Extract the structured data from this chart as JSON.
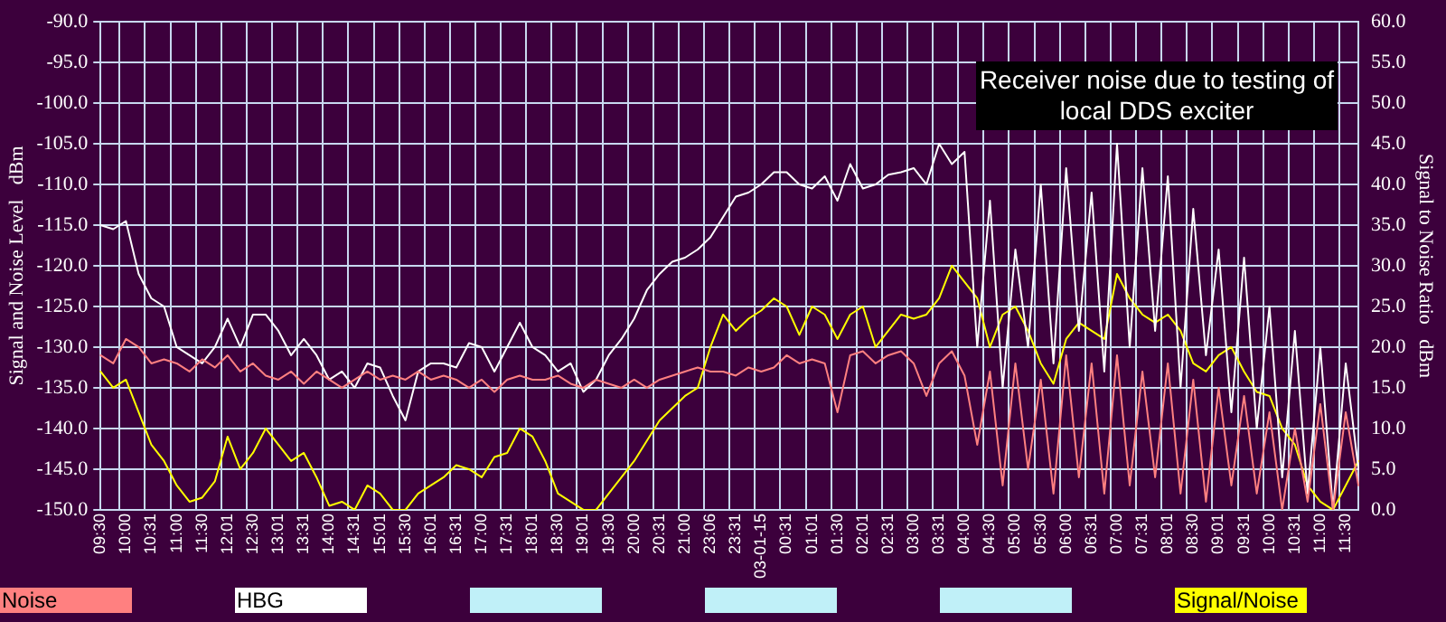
{
  "chart_data": {
    "type": "line",
    "categories": [
      "09:30",
      null,
      "10:00",
      null,
      "10:31",
      null,
      "11:00",
      null,
      "11:30",
      null,
      "12:01",
      null,
      "12:30",
      null,
      "13:01",
      null,
      "13:31",
      null,
      "14:00",
      null,
      "14:31",
      null,
      "15:01",
      null,
      "15:30",
      null,
      "16:01",
      null,
      "16:31",
      null,
      "17:00",
      null,
      "17:31",
      null,
      "18:01",
      null,
      "18:30",
      null,
      "19:01",
      null,
      "19:30",
      null,
      "20:00",
      null,
      "20:31",
      null,
      "21:00",
      null,
      "23:06",
      null,
      "23:31",
      null,
      "03-01-15",
      null,
      "00:31",
      null,
      "01:01",
      null,
      "01:30",
      null,
      "02:01",
      null,
      "02:31",
      null,
      "03:00",
      null,
      "03:31",
      null,
      "04:00",
      null,
      "04:30",
      null,
      "05:00",
      null,
      "05:30",
      null,
      "06:00",
      null,
      "06:31",
      null,
      "07:00",
      null,
      "07:31",
      null,
      "08:01",
      null,
      "08:30",
      null,
      "09:01",
      null,
      "09:31",
      null,
      "10:00",
      null,
      "10:31",
      null,
      "11:00",
      null,
      "11:30",
      null
    ],
    "series": [
      {
        "name": "Noise",
        "color": "#ff8080",
        "values": [
          -131,
          -132,
          -129,
          -130,
          -132,
          -131.5,
          -132,
          -133,
          -131.5,
          -132.5,
          -131,
          -133,
          -132,
          -133.5,
          -134,
          -133,
          -134.5,
          -133,
          -134,
          -135,
          -134,
          -133,
          -134,
          -133.5,
          -134,
          -133,
          -134,
          -133.5,
          -134,
          -135,
          -134,
          -135.5,
          -134,
          -133.5,
          -134,
          -134,
          -133.5,
          -134.5,
          -135,
          -134,
          -134.5,
          -135,
          -134,
          -135,
          -134,
          -133.5,
          -133,
          -132.5,
          -133,
          -133,
          -133.5,
          -132.5,
          -133,
          -132.5,
          -131,
          -132,
          -131.5,
          -132,
          -138,
          -131,
          -130.5,
          -132,
          -131,
          -130.5,
          -132,
          -136,
          -132,
          -130.5,
          -133.5,
          -142,
          -133,
          -147,
          -132,
          -145,
          -134,
          -148,
          -131,
          -146,
          -132,
          -148,
          -131,
          -147,
          -133,
          -146,
          -132,
          -148,
          -134,
          -149,
          -135,
          -147,
          -136,
          -148,
          -138,
          -150,
          -140,
          -149,
          -137,
          -150,
          -138,
          -147
        ]
      },
      {
        "name": "HBG",
        "color": "#ffffff",
        "values": [
          -115,
          -115.5,
          -114.5,
          -121,
          -124,
          -125,
          -130,
          -131,
          -132,
          -130,
          -126.5,
          -130,
          -126,
          -126,
          -128,
          -131,
          -129,
          -131,
          -134,
          -133,
          -135,
          -132,
          -132.5,
          -136,
          -139,
          -133,
          -132,
          -132,
          -132.5,
          -129.5,
          -130,
          -133,
          -130,
          -127,
          -130,
          -131,
          -133,
          -132,
          -135.5,
          -134,
          -131,
          -129,
          -126.5,
          -123,
          -121,
          -119.5,
          -119,
          -118,
          -116.5,
          -114,
          -111.5,
          -111,
          -110,
          -108.5,
          -108.5,
          -110,
          -110.5,
          -109,
          -112,
          -107.5,
          -110.5,
          -110,
          -108.8,
          -108.5,
          -108,
          -110,
          -105,
          -107.5,
          -106,
          -130,
          -112,
          -135,
          -118,
          -130,
          -110,
          -132,
          -108,
          -128,
          -111,
          -133,
          -105,
          -130,
          -108,
          -128,
          -109,
          -135,
          -113,
          -131,
          -118,
          -138,
          -119,
          -140,
          -125,
          -146,
          -128,
          -148,
          -130,
          -150,
          -132,
          -145
        ]
      },
      {
        "name": "Signal/Noise",
        "color": "#ffff00",
        "axis": "y2",
        "values": [
          17,
          15,
          16,
          12,
          8,
          6,
          3,
          1,
          1.5,
          3.5,
          9,
          5,
          7,
          10,
          8,
          6,
          7,
          4,
          0.5,
          1,
          0,
          3,
          2,
          0,
          0,
          2,
          3,
          4,
          5.5,
          5,
          4,
          6.5,
          7,
          10,
          9,
          6,
          2,
          1,
          0,
          0,
          2,
          4,
          6,
          8.5,
          11,
          12.5,
          14,
          15,
          20,
          24,
          22,
          23.5,
          24.5,
          26,
          25,
          21.5,
          25,
          24,
          21,
          24,
          25,
          20,
          22,
          24,
          23.5,
          24,
          26,
          30,
          28,
          26,
          20,
          24,
          25,
          22,
          18,
          15.5,
          21,
          23,
          22,
          21,
          29,
          26,
          24,
          23,
          24,
          22,
          18,
          17,
          19,
          20,
          17,
          14.5,
          14,
          10,
          8,
          3,
          1,
          0,
          3,
          6
        ]
      }
    ],
    "ylabel": "Signal and Noise Level   dBm",
    "y2label": "Signal to Noise Ratio   dBm",
    "ylim": [
      -150,
      -90
    ],
    "yticks": [
      {
        "value": -150,
        "label": "-150.0"
      },
      {
        "value": -145,
        "label": "-145.0"
      },
      {
        "value": -140,
        "label": "-140.0"
      },
      {
        "value": -135,
        "label": "-135.0"
      },
      {
        "value": -130,
        "label": "-130.0"
      },
      {
        "value": -125,
        "label": "-125.0"
      },
      {
        "value": -120,
        "label": "-120.0"
      },
      {
        "value": -115,
        "label": "-115.0"
      },
      {
        "value": -110,
        "label": "-110.0"
      },
      {
        "value": -105,
        "label": "-105.0"
      },
      {
        "value": -100,
        "label": "-100.0"
      },
      {
        "value": -95,
        "label": "-95.0"
      },
      {
        "value": -90,
        "label": "-90.0"
      }
    ],
    "y2lim": [
      0,
      60
    ],
    "y2ticks": [
      {
        "value": 0,
        "label": "0.0"
      },
      {
        "value": 5,
        "label": "5.0"
      },
      {
        "value": 10,
        "label": "10.0"
      },
      {
        "value": 15,
        "label": "15.0"
      },
      {
        "value": 20,
        "label": "20.0"
      },
      {
        "value": 25,
        "label": "25.0"
      },
      {
        "value": 30,
        "label": "30.0"
      },
      {
        "value": 35,
        "label": "35.0"
      },
      {
        "value": 40,
        "label": "40.0"
      },
      {
        "value": 45,
        "label": "45.0"
      },
      {
        "value": 50,
        "label": "50.0"
      },
      {
        "value": 55,
        "label": "55.0"
      },
      {
        "value": 60,
        "label": "60.0"
      }
    ],
    "annotations": [
      "Receiver noise due to testing of local DDS exciter"
    ],
    "grid": true,
    "legend": "bottom"
  }
}
